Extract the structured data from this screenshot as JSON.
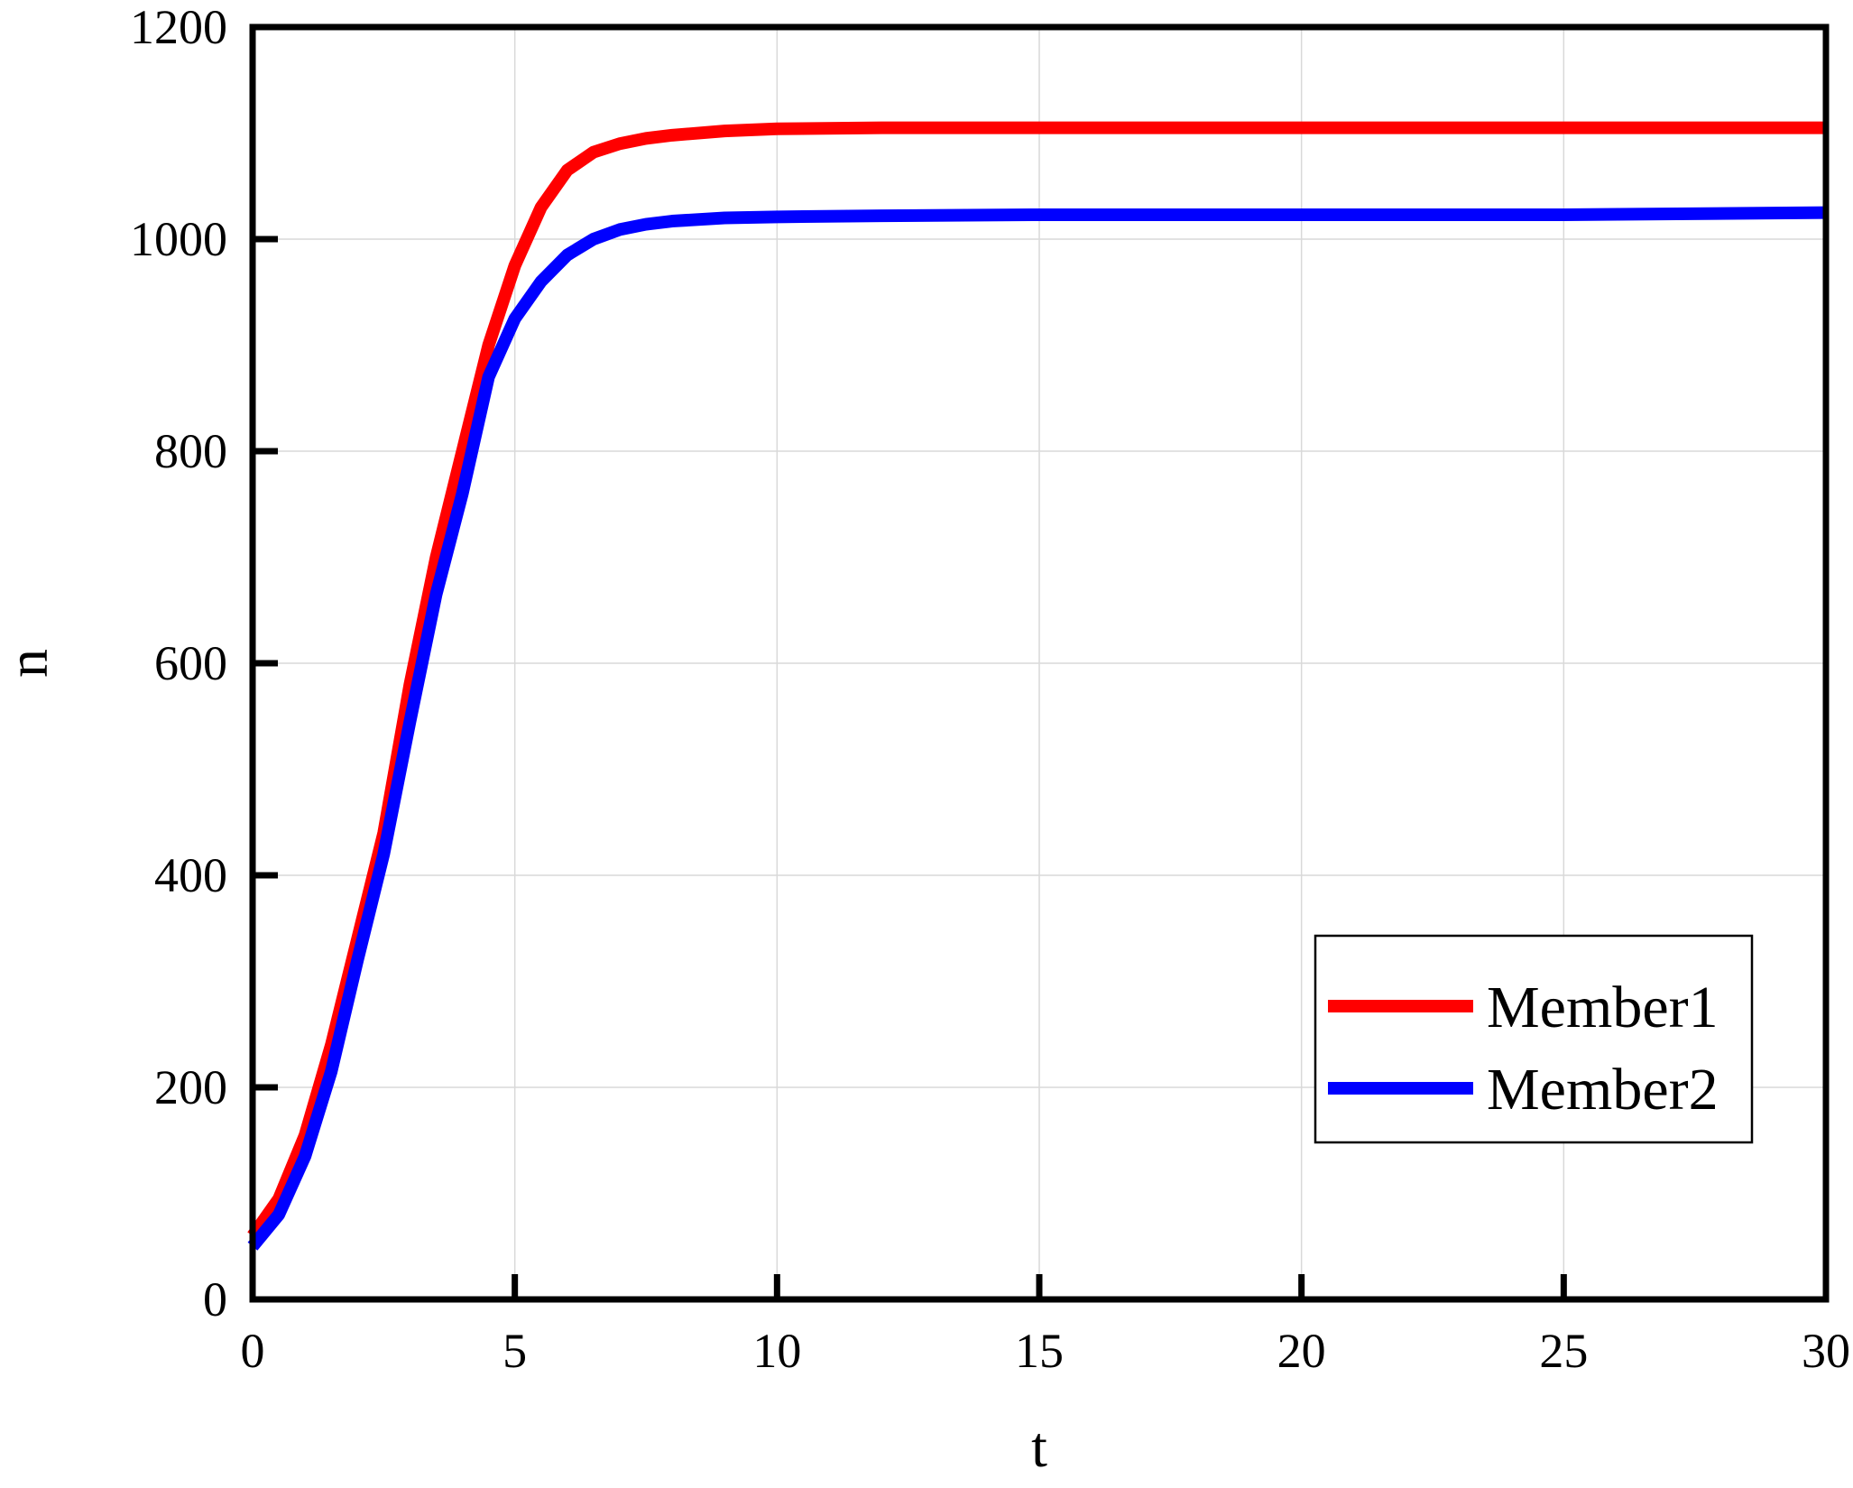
{
  "colors": {
    "member1": "#ff0000",
    "member2": "#0000ff",
    "axis": "#000000",
    "grid": "#d9d9d9",
    "background": "#ffffff"
  },
  "chart_data": {
    "type": "line",
    "title": "",
    "xlabel": "t",
    "ylabel": "n",
    "xlim": [
      0,
      30
    ],
    "ylim": [
      0,
      1200
    ],
    "xticks": [
      0,
      5,
      10,
      15,
      20,
      25,
      30
    ],
    "yticks": [
      0,
      200,
      400,
      600,
      800,
      1000,
      1200
    ],
    "xtick_labels": [
      "0",
      "5",
      "10",
      "15",
      "20",
      "25",
      "30"
    ],
    "ytick_labels": [
      "0",
      "200",
      "400",
      "600",
      "800",
      "1000",
      "1200"
    ],
    "grid": true,
    "legend_position": "bottom-right",
    "series": [
      {
        "name": "Member1",
        "color": "#ff0000",
        "x": [
          0,
          0.5,
          1,
          1.5,
          2,
          2.5,
          3,
          3.5,
          4,
          4.5,
          5,
          5.5,
          6,
          6.5,
          7,
          7.5,
          8,
          9,
          10,
          12,
          15,
          20,
          25,
          30
        ],
        "y": [
          60,
          95,
          155,
          240,
          340,
          440,
          580,
          700,
          800,
          900,
          975,
          1030,
          1065,
          1082,
          1090,
          1095,
          1098,
          1102,
          1104,
          1105,
          1105,
          1105,
          1105,
          1105
        ]
      },
      {
        "name": "Member2",
        "color": "#0000ff",
        "x": [
          0,
          0.5,
          1,
          1.5,
          2,
          2.5,
          3,
          3.5,
          4,
          4.5,
          5,
          5.5,
          6,
          6.5,
          7,
          7.5,
          8,
          9,
          10,
          12,
          15,
          20,
          25,
          30
        ],
        "y": [
          50,
          80,
          135,
          215,
          320,
          420,
          545,
          665,
          760,
          870,
          925,
          960,
          985,
          1000,
          1009,
          1014,
          1017,
          1020,
          1021,
          1022,
          1023,
          1023,
          1023,
          1025
        ]
      }
    ]
  }
}
